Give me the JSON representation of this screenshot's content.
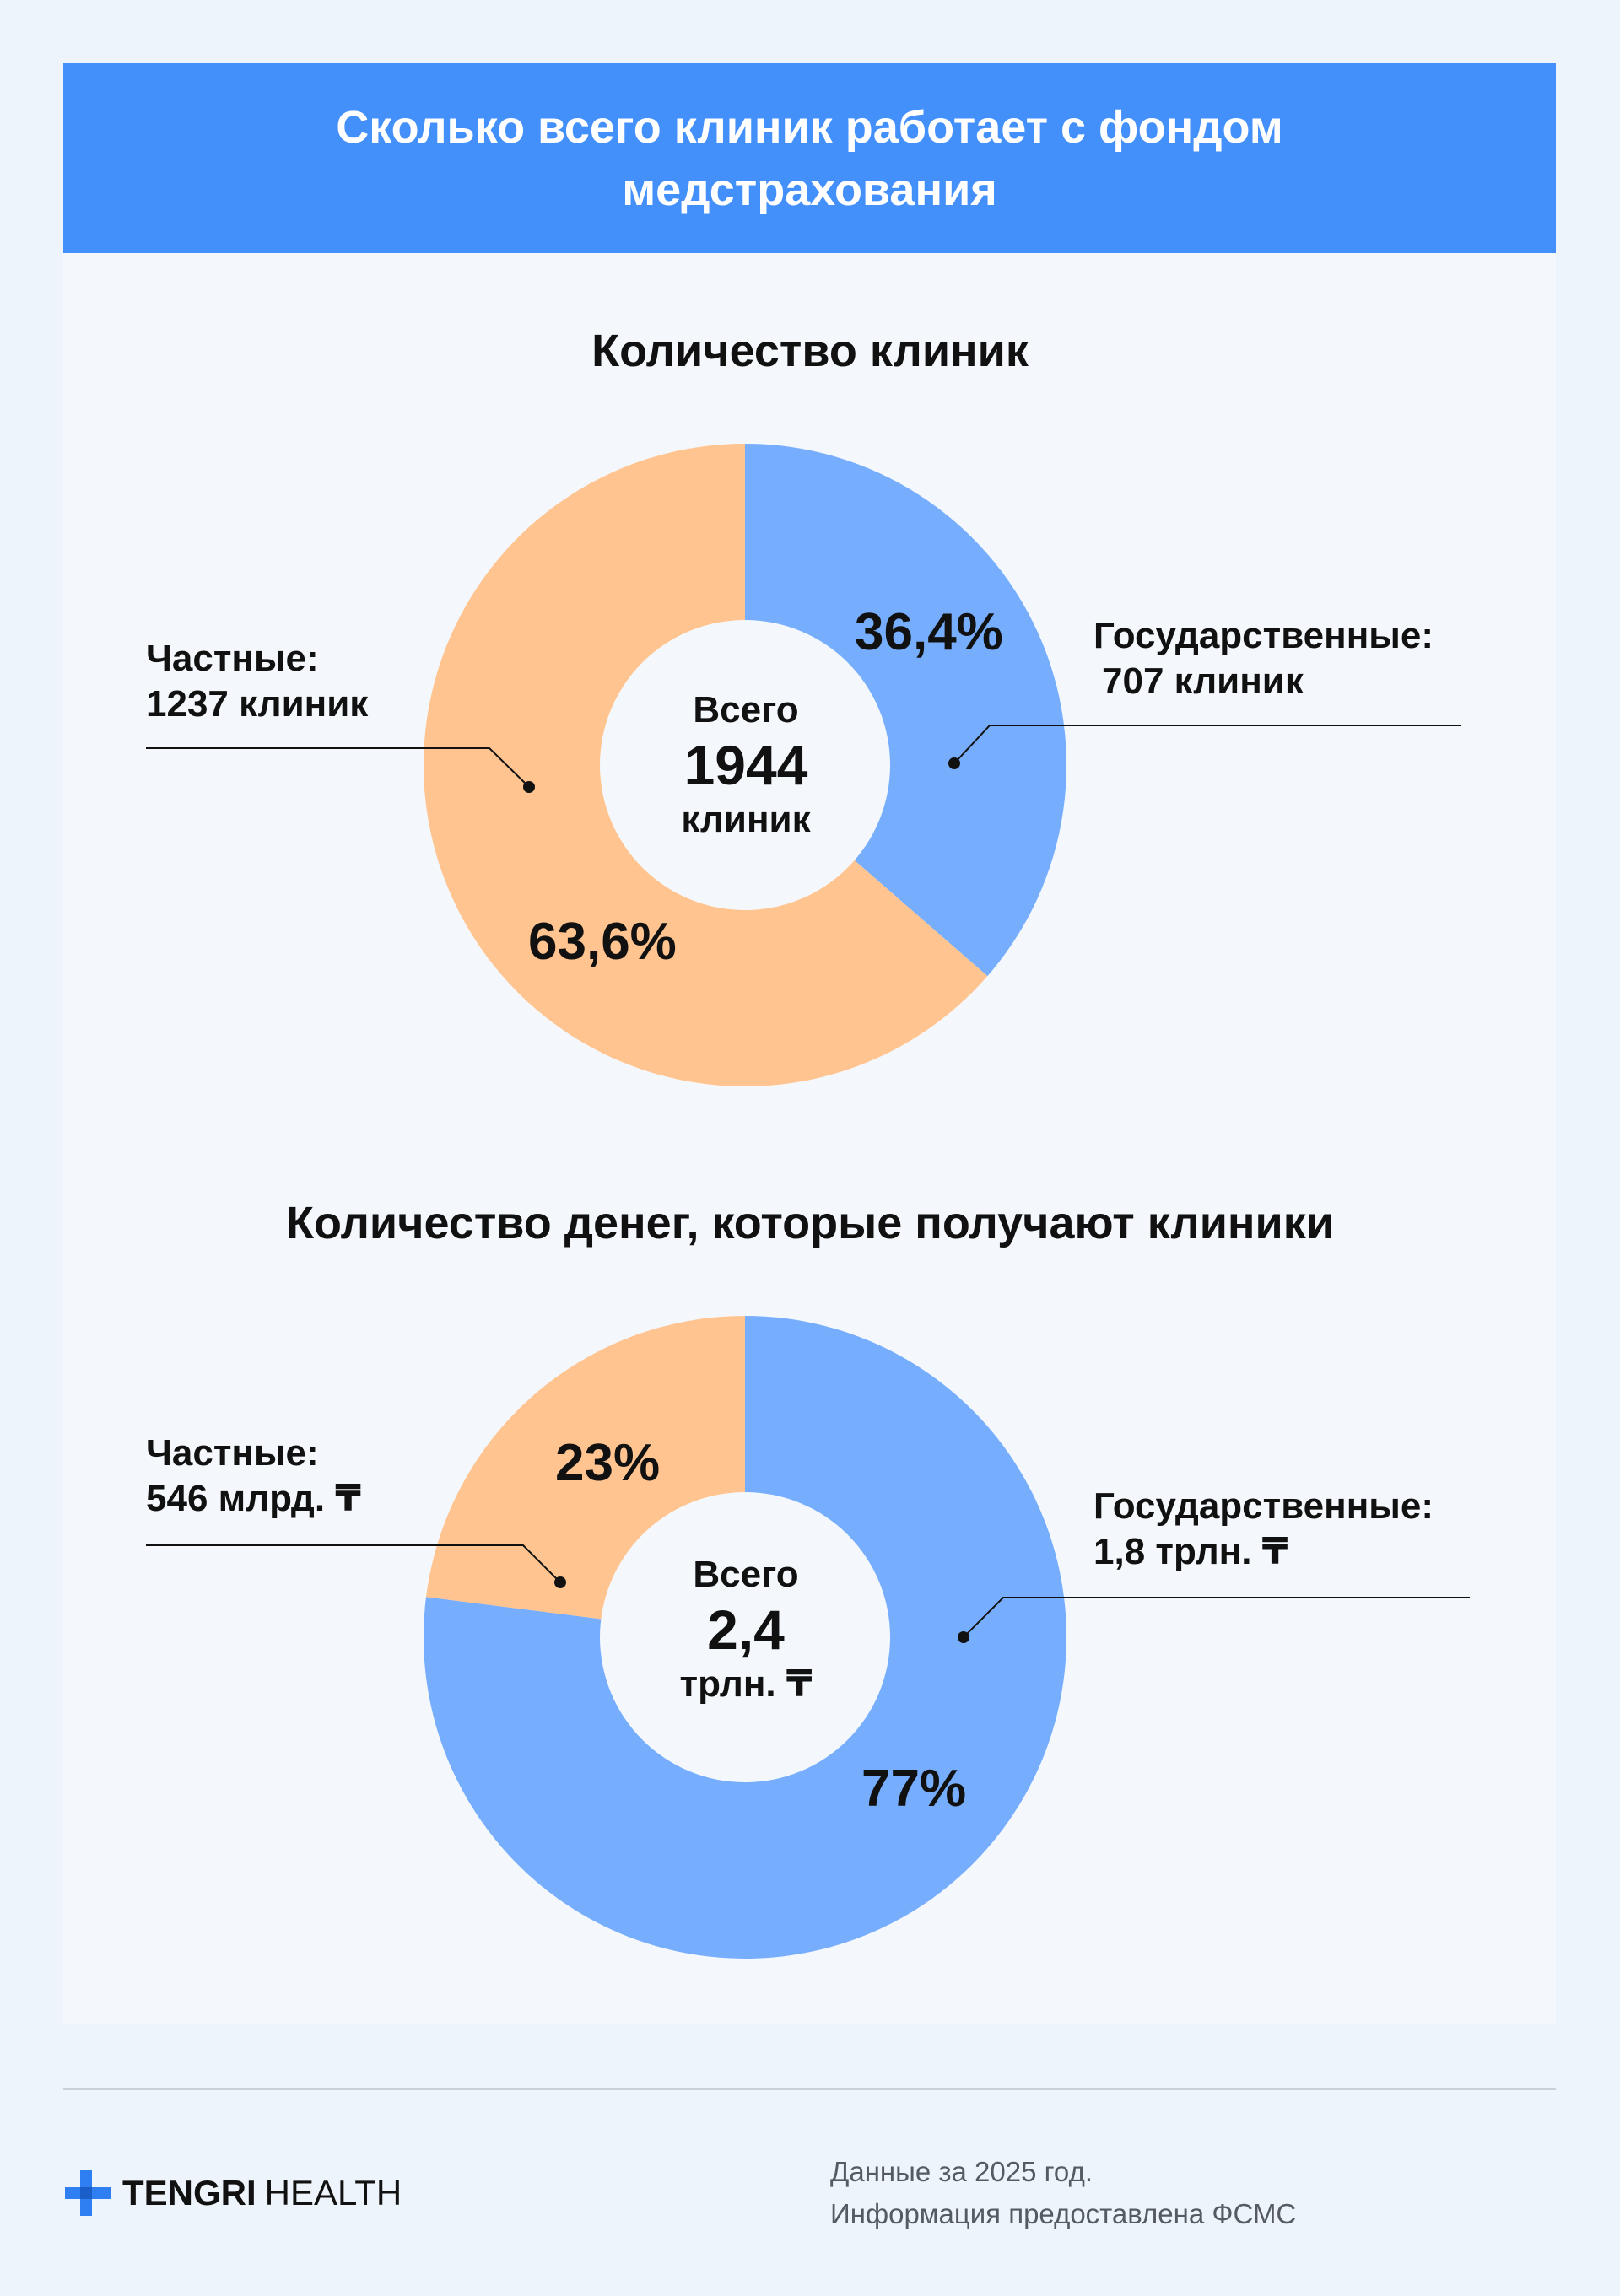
{
  "header": {
    "title": "Сколько всего клиник работает с фондом медстрахования"
  },
  "colors": {
    "header_bg": "#4490fb",
    "public": "#76aefd",
    "private": "#ffc48f"
  },
  "chart_data": [
    {
      "type": "pie",
      "title": "Количество клиник",
      "center": {
        "top": "Всего",
        "value": "1944",
        "bottom": "клиник"
      },
      "slices": [
        {
          "key": "public",
          "percent": 36.4,
          "percent_label": "36,4%",
          "label_line1": "Государственные:",
          "label_line2": "707 клиник",
          "color": "#76aefd"
        },
        {
          "key": "private",
          "percent": 63.6,
          "percent_label": "63,6%",
          "label_line1": "Частные:",
          "label_line2": "1237 клиник",
          "color": "#ffc48f"
        }
      ]
    },
    {
      "type": "pie",
      "title": "Количество денег, которые получают клиники",
      "center": {
        "top": "Всего",
        "value": "2,4",
        "bottom": "трлн. ₸"
      },
      "slices": [
        {
          "key": "public",
          "percent": 77,
          "percent_label": "77%",
          "label_line1": "Государственные:",
          "label_line2": "1,8 трлн. ₸",
          "color": "#76aefd"
        },
        {
          "key": "private",
          "percent": 23,
          "percent_label": "23%",
          "label_line1": "Частные:",
          "label_line2": "546 млрд. ₸",
          "color": "#ffc48f"
        }
      ]
    }
  ],
  "footer": {
    "brand_bold": "TENGRI",
    "brand_light": "HEALTH",
    "logo_icon": "medical-cross-icon",
    "note_line1": "Данные за 2025 год.",
    "note_line2": "Информация предоставлена ФСМС"
  }
}
